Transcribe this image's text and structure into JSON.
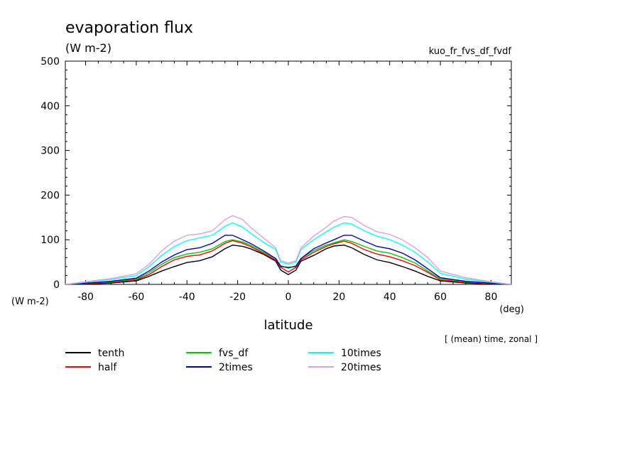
{
  "chart_data": {
    "type": "line",
    "title": "evaporation flux",
    "units": "(W m-2)",
    "experiment": "kuo_fr_fvs_df_fvdf",
    "xlabel": "latitude",
    "xunits": "(deg)",
    "yunits": "(W m-2)",
    "note": "[ (mean) time, zonal ]",
    "xlim": [
      -88,
      88
    ],
    "ylim": [
      0,
      500
    ],
    "xticks": [
      -80,
      -60,
      -40,
      -20,
      0,
      20,
      40,
      60,
      80
    ],
    "yticks": [
      0,
      100,
      200,
      300,
      400,
      500
    ],
    "x": [
      -88,
      -80,
      -70,
      -60,
      -55,
      -50,
      -45,
      -40,
      -35,
      -30,
      -25,
      -22,
      -18,
      -15,
      -10,
      -5,
      -3,
      0,
      3,
      5,
      10,
      15,
      18,
      22,
      25,
      30,
      35,
      40,
      45,
      50,
      55,
      60,
      70,
      80,
      88
    ],
    "series": [
      {
        "name": "tenth",
        "color": "#000000",
        "values": [
          0,
          1,
          3,
          8,
          18,
          30,
          40,
          49,
          53,
          62,
          80,
          88,
          85,
          80,
          68,
          52,
          32,
          22,
          32,
          52,
          65,
          80,
          86,
          88,
          82,
          67,
          55,
          49,
          40,
          30,
          18,
          8,
          3,
          1,
          0
        ]
      },
      {
        "name": "half",
        "color": "#ff0000",
        "values": [
          0,
          2,
          5,
          10,
          22,
          40,
          55,
          63,
          66,
          75,
          92,
          98,
          92,
          85,
          70,
          55,
          38,
          28,
          38,
          55,
          72,
          85,
          91,
          97,
          92,
          78,
          68,
          62,
          53,
          42,
          27,
          10,
          5,
          2,
          0
        ]
      },
      {
        "name": "fvs_df",
        "color": "#00cc00",
        "values": [
          0,
          3,
          6,
          12,
          26,
          45,
          60,
          68,
          72,
          80,
          96,
          100,
          95,
          88,
          73,
          58,
          42,
          36,
          42,
          58,
          76,
          88,
          93,
          100,
          96,
          85,
          75,
          70,
          60,
          48,
          30,
          13,
          6,
          3,
          0
        ]
      },
      {
        "name": "2times",
        "color": "#0000cc",
        "values": [
          0,
          3,
          7,
          14,
          30,
          50,
          66,
          78,
          82,
          92,
          110,
          110,
          100,
          92,
          76,
          58,
          40,
          38,
          40,
          58,
          80,
          93,
          100,
          110,
          110,
          97,
          85,
          80,
          70,
          55,
          35,
          15,
          7,
          3,
          0
        ]
      },
      {
        "name": "10times",
        "color": "#00ffff",
        "values": [
          0,
          5,
          11,
          20,
          40,
          65,
          85,
          98,
          104,
          110,
          130,
          138,
          128,
          115,
          95,
          78,
          50,
          45,
          50,
          78,
          100,
          118,
          128,
          138,
          135,
          120,
          108,
          100,
          88,
          72,
          50,
          25,
          12,
          5,
          0
        ]
      },
      {
        "name": "20times",
        "color": "#dda0dd",
        "values": [
          0,
          6,
          13,
          24,
          45,
          75,
          97,
          110,
          113,
          120,
          145,
          154,
          145,
          128,
          105,
          82,
          53,
          48,
          53,
          82,
          108,
          128,
          142,
          152,
          150,
          132,
          118,
          112,
          100,
          82,
          60,
          30,
          15,
          6,
          0
        ]
      }
    ]
  }
}
